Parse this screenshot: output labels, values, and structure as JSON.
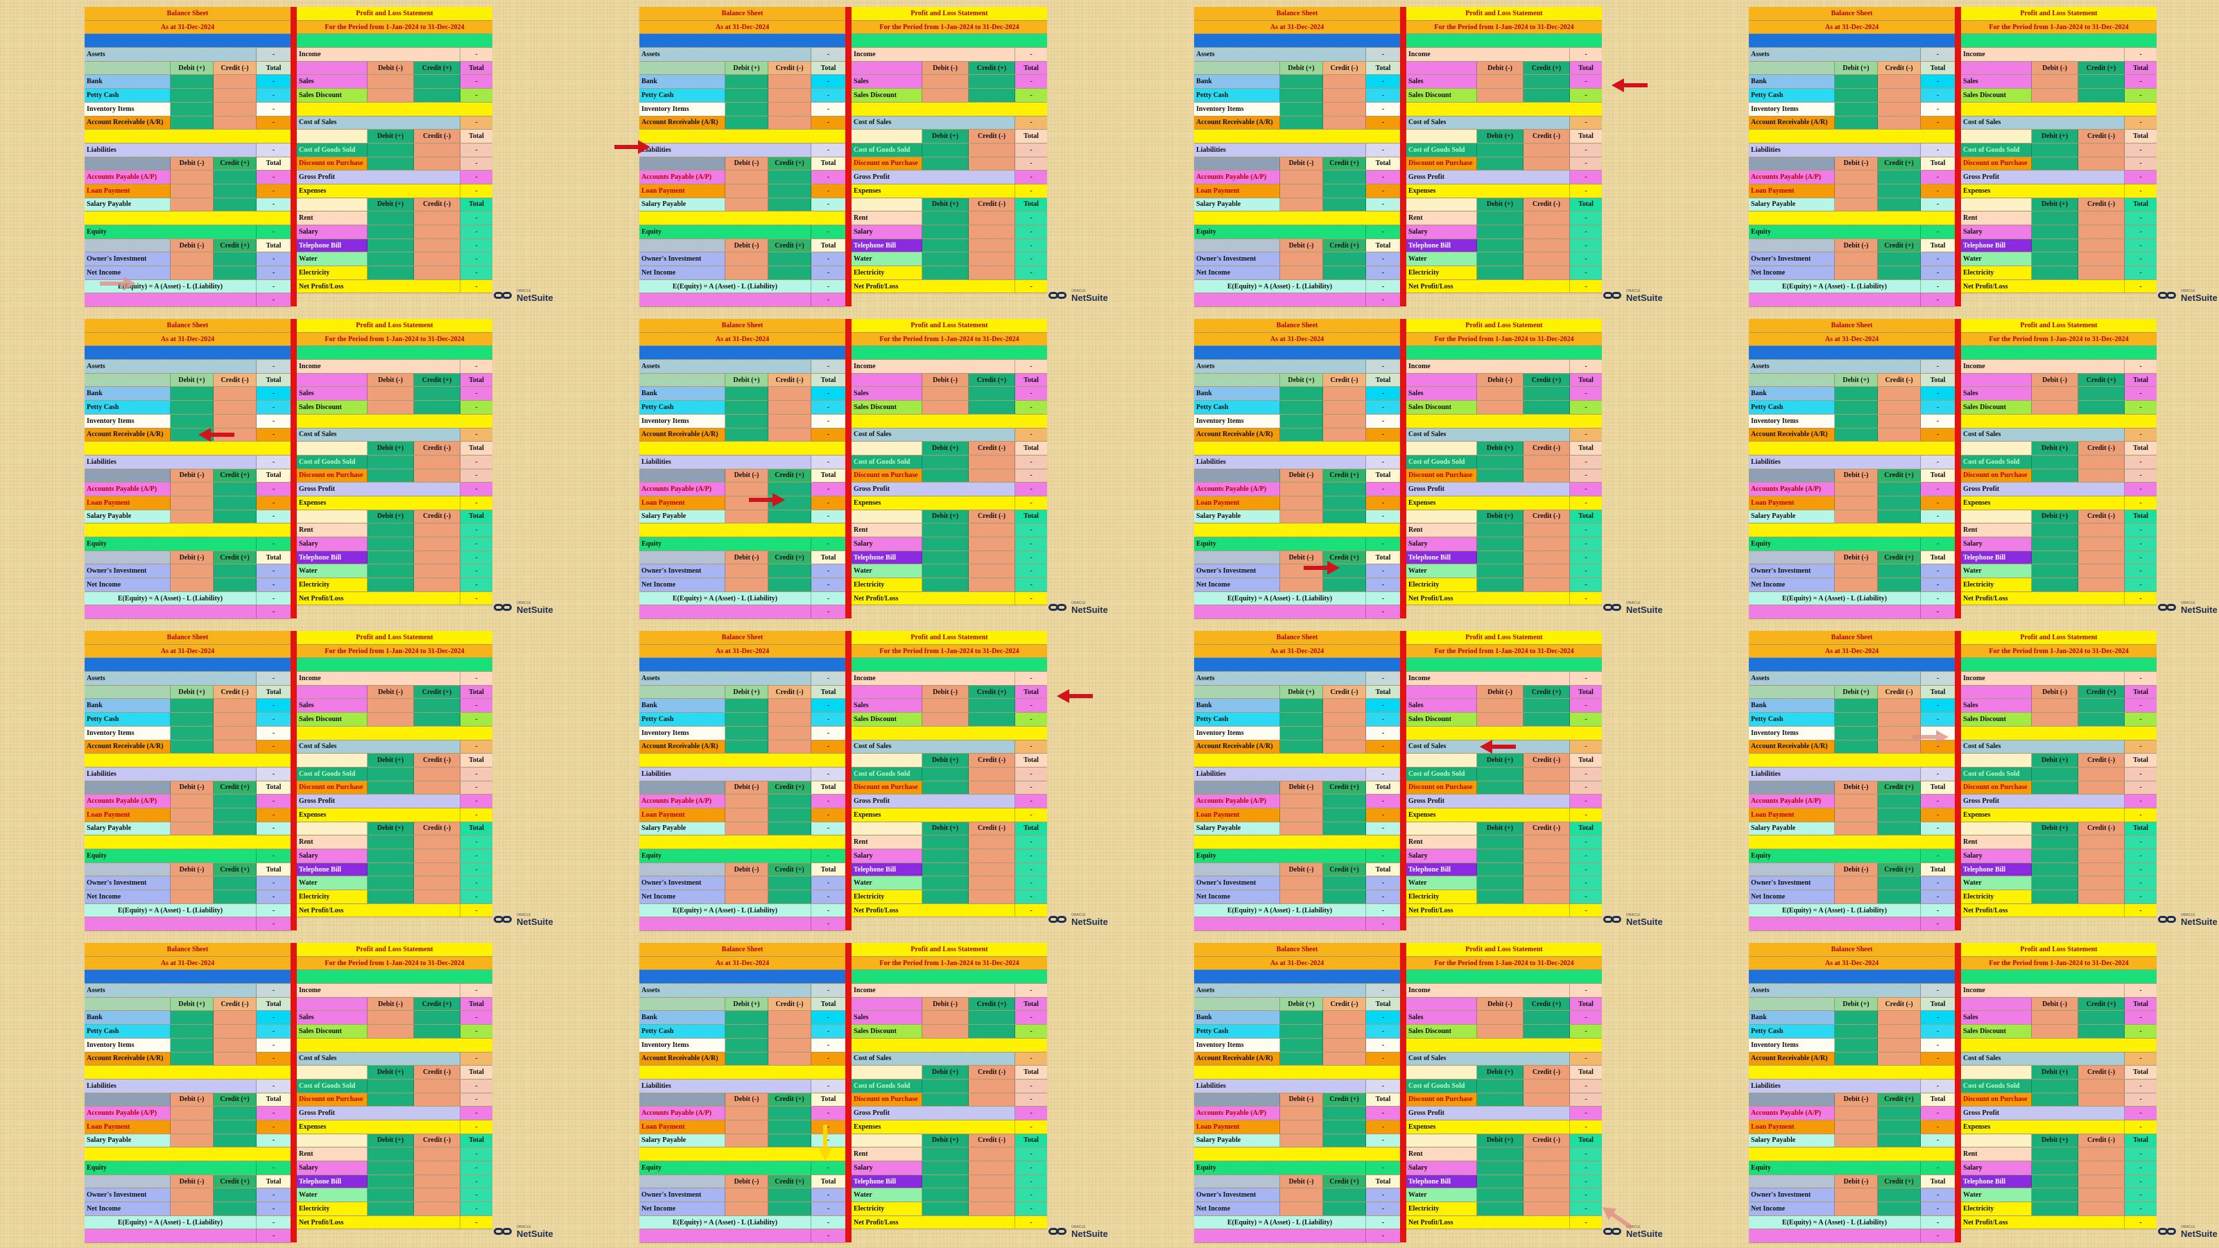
{
  "balance_sheet": {
    "title": "Balance Sheet",
    "as_at": "As at 31-Dec-2024",
    "assets": "Assets",
    "liabilities": "Liabilities",
    "equity": "Equity",
    "bank": "Bank",
    "petty_cash": "Petty Cash",
    "inventory_items": "Inventory Items",
    "account_receivable": "Account Receivable (A/R)",
    "accounts_payable": "Accounts Payable (A/P)",
    "loan_payment": "Loan Payment",
    "salary_payable": "Salary Payable",
    "owners_investment": "Owner's Investment",
    "net_income": "Net Income",
    "formula": "E(Equity) = A (Asset) - L (Liability)",
    "debit_plus": "Debit (+)",
    "credit_minus": "Credit (-)",
    "debit_minus": "Debit (-)",
    "credit_plus": "Credit (+)",
    "total": "Total",
    "dash": "-"
  },
  "pl_statement": {
    "title": "Profit and Loss Statement",
    "period": "For the Period from 1-Jan-2024 to 31-Dec-2024",
    "income": "Income",
    "sales": "Sales",
    "sales_discount": "Sales Discount",
    "cost_of_sales": "Cost of Sales",
    "cost_of_goods_sold": "Cost of Goods Sold",
    "discount_on_purchase": "Discount on Purchase",
    "gross_profit": "Gross Profit",
    "expenses": "Expenses",
    "rent": "Rent",
    "salary": "Salary",
    "telephone_bill": "Telephone Bill",
    "water": "Water",
    "electricity": "Electricity",
    "net_profit_loss": "Net Profit/Loss",
    "debit_minus": "Debit (-)",
    "credit_plus": "Credit (+)",
    "debit_plus": "Debit (+)",
    "credit_minus": "Credit (-)",
    "total": "Total",
    "dash": "-"
  },
  "brand": {
    "small": "ORACLE",
    "name": "NetSuite"
  },
  "panels": [
    {
      "arrow": "formula-row-left"
    },
    {
      "arrow": "liabilities-row-left"
    },
    {
      "arrow": "sales-total-right"
    },
    {
      "arrow": "none"
    },
    {
      "arrow": "account-receivable-debit"
    },
    {
      "arrow": "loan-payment-credit"
    },
    {
      "arrow": "owners-investment-credit"
    },
    {
      "arrow": "none"
    },
    {
      "arrow": "none"
    },
    {
      "arrow": "sales-header-total"
    },
    {
      "arrow": "cost-of-sales-label"
    },
    {
      "arrow": "inventory-total-faded"
    },
    {
      "arrow": "none"
    },
    {
      "arrow": "salary-payable-down"
    },
    {
      "arrow": "brand-faded"
    },
    {
      "arrow": "none"
    }
  ],
  "colors": {
    "divider": "#e3130f",
    "arrow": "#d0141c",
    "background": "#ecd9a2"
  }
}
